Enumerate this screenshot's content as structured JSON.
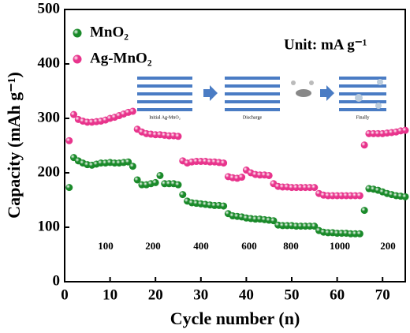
{
  "chart_data": {
    "type": "scatter",
    "xlabel": "Cycle number (n)",
    "ylabel": "Capacity (mAh g⁻¹)",
    "unit_note": "Unit:  mA g⁻¹",
    "rate_labels": [
      "100",
      "200",
      "400",
      "600",
      "800",
      "1000",
      "200"
    ],
    "inset_labels": [
      "Initial Ag-MnO₂",
      "Discharge",
      "Finally"
    ],
    "legend": "upper left",
    "xlim": [
      0,
      75
    ],
    "ylim": [
      0,
      500
    ],
    "xticks": [
      0,
      10,
      20,
      30,
      40,
      50,
      60,
      70
    ],
    "yticks": [
      0,
      100,
      200,
      300,
      400,
      500
    ],
    "x": [
      1,
      2,
      3,
      4,
      5,
      6,
      7,
      8,
      9,
      10,
      11,
      12,
      13,
      14,
      15,
      16,
      17,
      18,
      19,
      20,
      21,
      22,
      23,
      24,
      25,
      26,
      27,
      28,
      29,
      30,
      31,
      32,
      33,
      34,
      35,
      36,
      37,
      38,
      39,
      40,
      41,
      42,
      43,
      44,
      45,
      46,
      47,
      48,
      49,
      50,
      51,
      52,
      53,
      54,
      55,
      56,
      57,
      58,
      59,
      60,
      61,
      62,
      63,
      64,
      65,
      66,
      67,
      68,
      69,
      70,
      71,
      72,
      73,
      74,
      75
    ],
    "series": [
      {
        "name": "MnO₂",
        "color": "#1a8a2a",
        "values": [
          173,
          228,
          222,
          218,
          215,
          214,
          216,
          218,
          218,
          219,
          218,
          218,
          219,
          220,
          212,
          187,
          178,
          178,
          180,
          182,
          195,
          180,
          180,
          180,
          178,
          160,
          148,
          145,
          144,
          143,
          142,
          141,
          140,
          140,
          139,
          125,
          121,
          120,
          119,
          117,
          116,
          115,
          115,
          114,
          113,
          112,
          104,
          103,
          103,
          103,
          102,
          102,
          102,
          102,
          102,
          94,
          91,
          90,
          90,
          89,
          89,
          89,
          88,
          88,
          88,
          131,
          171,
          170,
          168,
          165,
          162,
          160,
          158,
          157,
          156
        ]
      },
      {
        "name": "Ag-MnO₂",
        "color": "#e8348c",
        "values": [
          259,
          307,
          298,
          295,
          293,
          293,
          294,
          295,
          297,
          300,
          302,
          305,
          308,
          311,
          313,
          280,
          275,
          272,
          271,
          270,
          270,
          269,
          268,
          268,
          267,
          222,
          218,
          220,
          221,
          221,
          221,
          220,
          220,
          219,
          218,
          193,
          191,
          190,
          192,
          205,
          200,
          197,
          196,
          196,
          195,
          180,
          175,
          174,
          174,
          173,
          173,
          173,
          173,
          173,
          173,
          162,
          159,
          158,
          158,
          158,
          158,
          158,
          158,
          158,
          158,
          251,
          272,
          272,
          272,
          272,
          273,
          274,
          275,
          277,
          278
        ]
      }
    ]
  }
}
